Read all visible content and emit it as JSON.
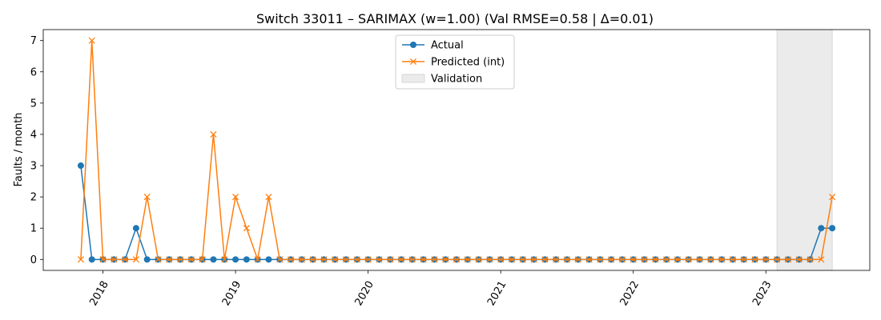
{
  "chart_data": {
    "type": "line",
    "title": "Switch 33011 – SARIMAX (w=1.00) (Val RMSE=0.58 | Δ=0.01)",
    "xlabel": "",
    "ylabel": "Faults / month",
    "x": [
      "2017-11",
      "2017-12",
      "2018-01",
      "2018-02",
      "2018-03",
      "2018-04",
      "2018-05",
      "2018-06",
      "2018-07",
      "2018-08",
      "2018-09",
      "2018-10",
      "2018-11",
      "2018-12",
      "2019-01",
      "2019-02",
      "2019-03",
      "2019-04",
      "2019-05",
      "2019-06",
      "2019-07",
      "2019-08",
      "2019-09",
      "2019-10",
      "2019-11",
      "2019-12",
      "2020-01",
      "2020-02",
      "2020-03",
      "2020-04",
      "2020-05",
      "2020-06",
      "2020-07",
      "2020-08",
      "2020-09",
      "2020-10",
      "2020-11",
      "2020-12",
      "2021-01",
      "2021-02",
      "2021-03",
      "2021-04",
      "2021-05",
      "2021-06",
      "2021-07",
      "2021-08",
      "2021-09",
      "2021-10",
      "2021-11",
      "2021-12",
      "2022-01",
      "2022-02",
      "2022-03",
      "2022-04",
      "2022-05",
      "2022-06",
      "2022-07",
      "2022-08",
      "2022-09",
      "2022-10",
      "2022-11",
      "2022-12",
      "2023-01",
      "2023-02",
      "2023-03",
      "2023-04",
      "2023-05",
      "2023-06",
      "2023-07"
    ],
    "series": [
      {
        "name": "Actual",
        "color": "#1f77b4",
        "marker": "circle",
        "values": [
          3,
          0,
          0,
          0,
          0,
          1,
          0,
          0,
          0,
          0,
          0,
          0,
          0,
          0,
          0,
          0,
          0,
          0,
          0,
          0,
          0,
          0,
          0,
          0,
          0,
          0,
          0,
          0,
          0,
          0,
          0,
          0,
          0,
          0,
          0,
          0,
          0,
          0,
          0,
          0,
          0,
          0,
          0,
          0,
          0,
          0,
          0,
          0,
          0,
          0,
          0,
          0,
          0,
          0,
          0,
          0,
          0,
          0,
          0,
          0,
          0,
          0,
          0,
          0,
          0,
          0,
          0,
          1,
          1
        ]
      },
      {
        "name": "Predicted (int)",
        "color": "#ff7f0e",
        "marker": "x",
        "values": [
          0,
          7,
          0,
          0,
          0,
          0,
          2,
          0,
          0,
          0,
          0,
          0,
          4,
          0,
          2,
          1,
          0,
          2,
          0,
          0,
          0,
          0,
          0,
          0,
          0,
          0,
          0,
          0,
          0,
          0,
          0,
          0,
          0,
          0,
          0,
          0,
          0,
          0,
          0,
          0,
          0,
          0,
          0,
          0,
          0,
          0,
          0,
          0,
          0,
          0,
          0,
          0,
          0,
          0,
          0,
          0,
          0,
          0,
          0,
          0,
          0,
          0,
          0,
          0,
          0,
          0,
          0,
          0,
          2
        ]
      }
    ],
    "validation": {
      "name": "Validation",
      "start": "2023-02",
      "end": "2023-07",
      "color": "#e6e6e6"
    },
    "xticks": [
      "2018",
      "2019",
      "2020",
      "2021",
      "2022",
      "2023"
    ],
    "ylim": [
      -0.35,
      7.35
    ],
    "yticks": [
      0,
      1,
      2,
      3,
      4,
      5,
      6,
      7
    ],
    "grid": false,
    "legend": "top-center"
  }
}
